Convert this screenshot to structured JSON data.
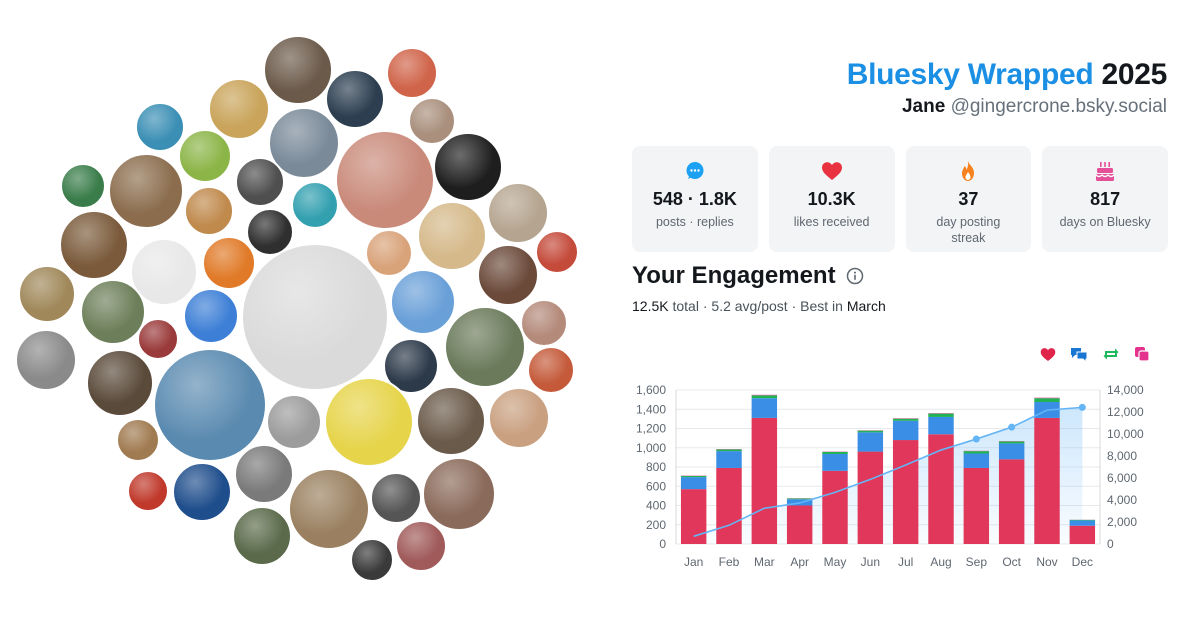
{
  "header": {
    "brand": "Bluesky Wrapped",
    "year": "2025",
    "display_name": "Jane",
    "handle": "@gingercrone.bsky.social"
  },
  "stats": [
    {
      "icon": "speech-bubble-icon",
      "value": "548 · 1.8K",
      "label": "posts · replies",
      "color": "#1da1f2"
    },
    {
      "icon": "heart-icon",
      "value": "10.3K",
      "label": "likes received",
      "color": "#e8323f"
    },
    {
      "icon": "flame-icon",
      "value": "37",
      "label": "day posting streak",
      "color": "#f7811e"
    },
    {
      "icon": "cake-icon",
      "value": "817",
      "label": "days on Bluesky",
      "color": "#e44f98"
    }
  ],
  "engagement": {
    "title": "Your Engagement",
    "total_value": "12.5K",
    "total_label": "total",
    "avg": "5.2 avg/post",
    "best_label": "Best in",
    "best_month": "March",
    "separator": "·"
  },
  "legend": [
    {
      "icon": "heart-icon",
      "color": "#e0254b"
    },
    {
      "icon": "reply-icon",
      "color": "#1976d2"
    },
    {
      "icon": "repost-icon",
      "color": "#1fb95d"
    },
    {
      "icon": "quote-icon",
      "color": "#e3338f"
    }
  ],
  "chart_data": {
    "type": "bar",
    "stacked": true,
    "categories": [
      "Jan",
      "Feb",
      "Mar",
      "Apr",
      "May",
      "Jun",
      "Jul",
      "Aug",
      "Sep",
      "Oct",
      "Nov",
      "Dec"
    ],
    "series": [
      {
        "key": "likes",
        "color": "#e0375a",
        "values": [
          570,
          790,
          1310,
          400,
          760,
          960,
          1080,
          1140,
          790,
          880,
          1310,
          190
        ]
      },
      {
        "key": "replies",
        "color": "#3a8ee6",
        "values": [
          125,
          175,
          205,
          65,
          175,
          200,
          200,
          180,
          150,
          165,
          165,
          55
        ]
      },
      {
        "key": "reposts",
        "color": "#22b454",
        "values": [
          12,
          18,
          30,
          8,
          22,
          18,
          22,
          35,
          25,
          20,
          40,
          6
        ]
      },
      {
        "key": "quotes",
        "color": "#e3338f",
        "values": [
          3,
          3,
          5,
          2,
          3,
          3,
          4,
          4,
          3,
          3,
          5,
          1
        ]
      }
    ],
    "cumulative": {
      "color": "#64b5f6",
      "values": [
        700,
        1700,
        3250,
        3730,
        4690,
        5870,
        7180,
        8540,
        9540,
        10620,
        12170,
        12420
      ]
    },
    "ylim_left": [
      0,
      1600
    ],
    "yticks_left": [
      "0",
      "200",
      "400",
      "600",
      "800",
      "1,000",
      "1,200",
      "1,400",
      "1,600"
    ],
    "ylim_right": [
      0,
      14000
    ],
    "yticks_right": [
      "0",
      "2,000",
      "4,000",
      "6,000",
      "8,000",
      "10,000",
      "12,000",
      "14,000"
    ],
    "grid": true
  },
  "bubbles": [
    {
      "name": "avatar-1",
      "c": "#6b5a4a"
    },
    {
      "name": "avatar-2",
      "c": "#c9a45a"
    },
    {
      "name": "avatar-3",
      "c": "#2c3e50"
    },
    {
      "name": "avatar-4",
      "c": "#d0644a"
    },
    {
      "name": "avatar-5",
      "c": "#3b8fb5"
    },
    {
      "name": "avatar-6",
      "c": "#a98f7c"
    },
    {
      "name": "avatar-7",
      "c": "#8cb548"
    },
    {
      "name": "avatar-8",
      "c": "#7a8a99"
    },
    {
      "name": "avatar-9",
      "c": "#4f4f4f"
    },
    {
      "name": "avatar-10",
      "c": "#c98a7a"
    },
    {
      "name": "avatar-11",
      "c": "#1e1e1e"
    },
    {
      "name": "avatar-12",
      "c": "#8b6d4d"
    },
    {
      "name": "avatar-13",
      "c": "#c08a4d"
    },
    {
      "name": "avatar-14",
      "c": "#33a0b0"
    },
    {
      "name": "avatar-15",
      "c": "#d5b98a"
    },
    {
      "name": "avatar-16",
      "c": "#b5a590"
    },
    {
      "name": "avatar-17",
      "c": "#3a7d4a"
    },
    {
      "name": "avatar-18",
      "c": "#c44a3a"
    },
    {
      "name": "avatar-19",
      "c": "#d9a37a"
    },
    {
      "name": "avatar-20",
      "c": "#7a5a3a"
    },
    {
      "name": "avatar-21",
      "c": "#e8e8e8"
    },
    {
      "name": "avatar-22",
      "c": "#e07a28"
    },
    {
      "name": "avatar-23",
      "c": "#2f2f2f"
    },
    {
      "name": "avatar-24",
      "c": "#6b4a3a"
    },
    {
      "name": "avatar-25",
      "c": "#a0885a"
    },
    {
      "name": "avatar-26",
      "c": "#6d7f5a"
    },
    {
      "name": "avatar-27",
      "c": "#3d7fd6"
    },
    {
      "name": "avatar-28",
      "c": "#9a3a3a"
    },
    {
      "name": "avatar-29",
      "c": "#dadada"
    },
    {
      "name": "avatar-30",
      "c": "#6aa0d8"
    },
    {
      "name": "avatar-31",
      "c": "#6a7a5a"
    },
    {
      "name": "avatar-32",
      "c": "#b48a7a"
    },
    {
      "name": "avatar-33",
      "c": "#8a8a8a"
    },
    {
      "name": "avatar-34",
      "c": "#5a4a3a"
    },
    {
      "name": "avatar-35",
      "c": "#2d3a4a"
    },
    {
      "name": "avatar-36",
      "c": "#c45a3a"
    },
    {
      "name": "avatar-37",
      "c": "#5a8ab0"
    },
    {
      "name": "avatar-38",
      "c": "#9c9c9c"
    },
    {
      "name": "avatar-39",
      "c": "#e6d44a"
    },
    {
      "name": "avatar-40",
      "c": "#6a5a4a"
    },
    {
      "name": "avatar-41",
      "c": "#c9a080"
    },
    {
      "name": "avatar-42",
      "c": "#a07a50"
    },
    {
      "name": "avatar-43",
      "c": "#c0392b"
    },
    {
      "name": "avatar-44",
      "c": "#1f4e8c"
    },
    {
      "name": "avatar-45",
      "c": "#7a7a7a"
    },
    {
      "name": "avatar-46",
      "c": "#9a8060"
    },
    {
      "name": "avatar-47",
      "c": "#555555"
    },
    {
      "name": "avatar-48",
      "c": "#8a6a5a"
    },
    {
      "name": "avatar-49",
      "c": "#5a6a4a"
    },
    {
      "name": "avatar-50",
      "c": "#3a3a3a"
    },
    {
      "name": "avatar-51",
      "c": "#a05a5a"
    },
    {
      "name": "avatar-52",
      "c": "#e8a020"
    },
    {
      "name": "avatar-53",
      "c": "#c8a078"
    },
    {
      "name": "avatar-54",
      "c": "#5a9ab0"
    },
    {
      "name": "avatar-55",
      "c": "#d8b090"
    }
  ]
}
